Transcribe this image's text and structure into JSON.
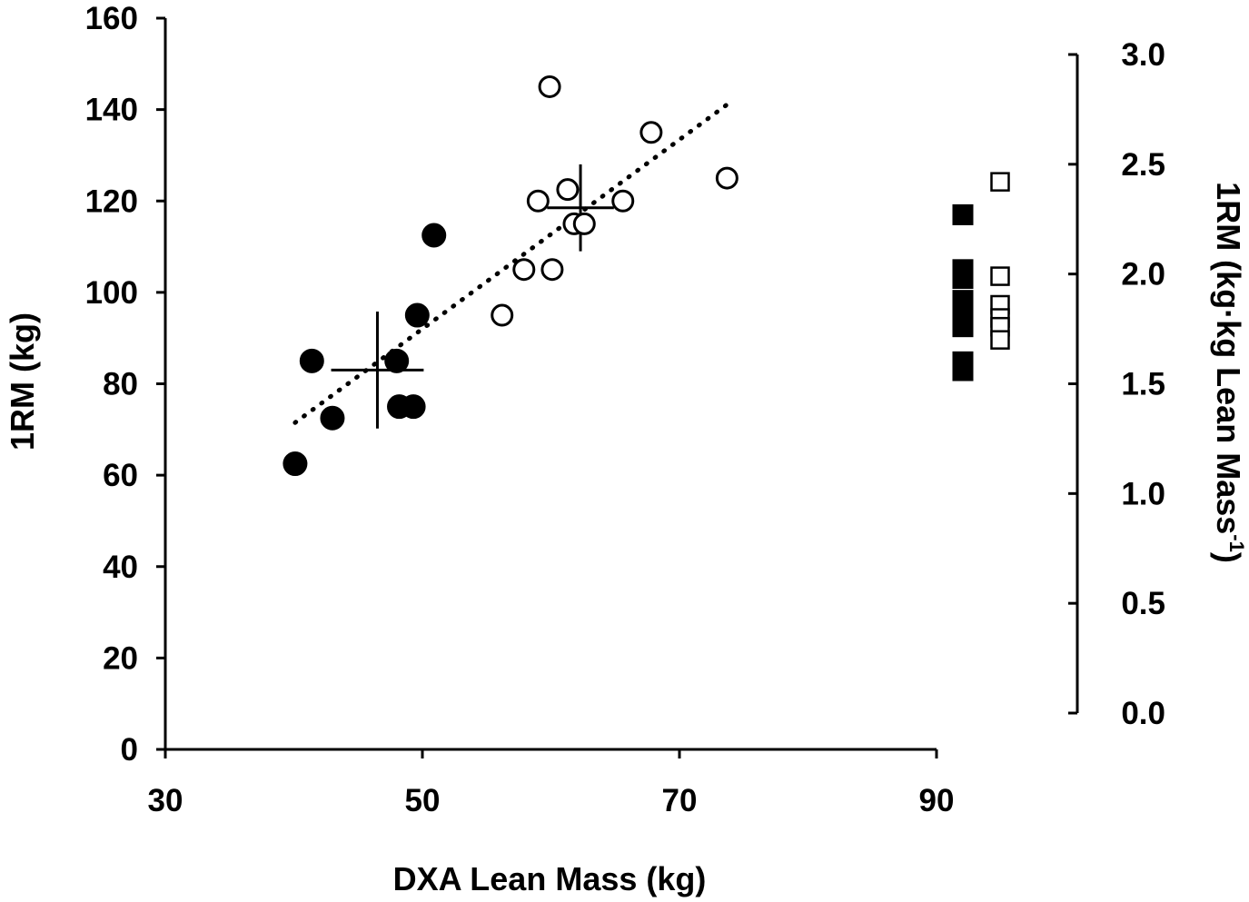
{
  "chart_data": {
    "type": "scatter",
    "xlabel": "DXA Lean Mass (kg)",
    "ylabel": "1RM (kg)",
    "y2label": "1RM (kg·kg Lean Mass",
    "y2label_sup": "-1",
    "y2label_end": ")",
    "xlim": [
      30,
      90
    ],
    "ylim": [
      0,
      160
    ],
    "y2lim": [
      0.0,
      3.0
    ],
    "x_ticks": [
      "30",
      "50",
      "70",
      "90"
    ],
    "y_ticks": [
      "0",
      "20",
      "40",
      "60",
      "80",
      "100",
      "120",
      "140",
      "160"
    ],
    "y2_ticks": [
      "0.0",
      "0.5",
      "1.0",
      "1.5",
      "2.0",
      "2.5",
      "3.0"
    ],
    "series": [
      {
        "name": "Filled circles",
        "marker": "filled-circle",
        "points": [
          {
            "x": 40.1,
            "y": 62.5
          },
          {
            "x": 41.4,
            "y": 85
          },
          {
            "x": 43.0,
            "y": 72.5
          },
          {
            "x": 48.0,
            "y": 85
          },
          {
            "x": 48.2,
            "y": 75
          },
          {
            "x": 49.3,
            "y": 75
          },
          {
            "x": 49.6,
            "y": 95
          },
          {
            "x": 50.9,
            "y": 112.5
          }
        ]
      },
      {
        "name": "Open circles",
        "marker": "open-circle",
        "points": [
          {
            "x": 56.2,
            "y": 95
          },
          {
            "x": 57.9,
            "y": 105
          },
          {
            "x": 59.0,
            "y": 120
          },
          {
            "x": 59.9,
            "y": 145
          },
          {
            "x": 60.1,
            "y": 105
          },
          {
            "x": 61.3,
            "y": 122.5
          },
          {
            "x": 61.8,
            "y": 115
          },
          {
            "x": 62.6,
            "y": 115
          },
          {
            "x": 65.6,
            "y": 120
          },
          {
            "x": 67.8,
            "y": 135
          },
          {
            "x": 73.7,
            "y": 125
          }
        ]
      }
    ],
    "trendline": {
      "style": "dotted",
      "x": [
        40.1,
        73.9
      ],
      "y": [
        71.5,
        141.5
      ]
    },
    "error_crosses": [
      {
        "group": "Filled circles",
        "mean_x": 46.5,
        "mean_y": 83,
        "x_err": 3.6,
        "y_err": 12.8
      },
      {
        "group": "Open circles",
        "mean_x": 62.3,
        "mean_y": 118.5,
        "x_err": 2.6,
        "y_err": 9.5
      }
    ],
    "right_axis_series": [
      {
        "name": "Filled squares",
        "marker": "filled-square",
        "values": [
          2.27,
          2.02,
          1.98,
          1.88,
          1.8,
          1.76,
          1.6,
          1.56
        ]
      },
      {
        "name": "Open squares",
        "marker": "open-square",
        "values": [
          2.42,
          1.99,
          1.86,
          1.8,
          1.76,
          1.7
        ]
      }
    ]
  }
}
